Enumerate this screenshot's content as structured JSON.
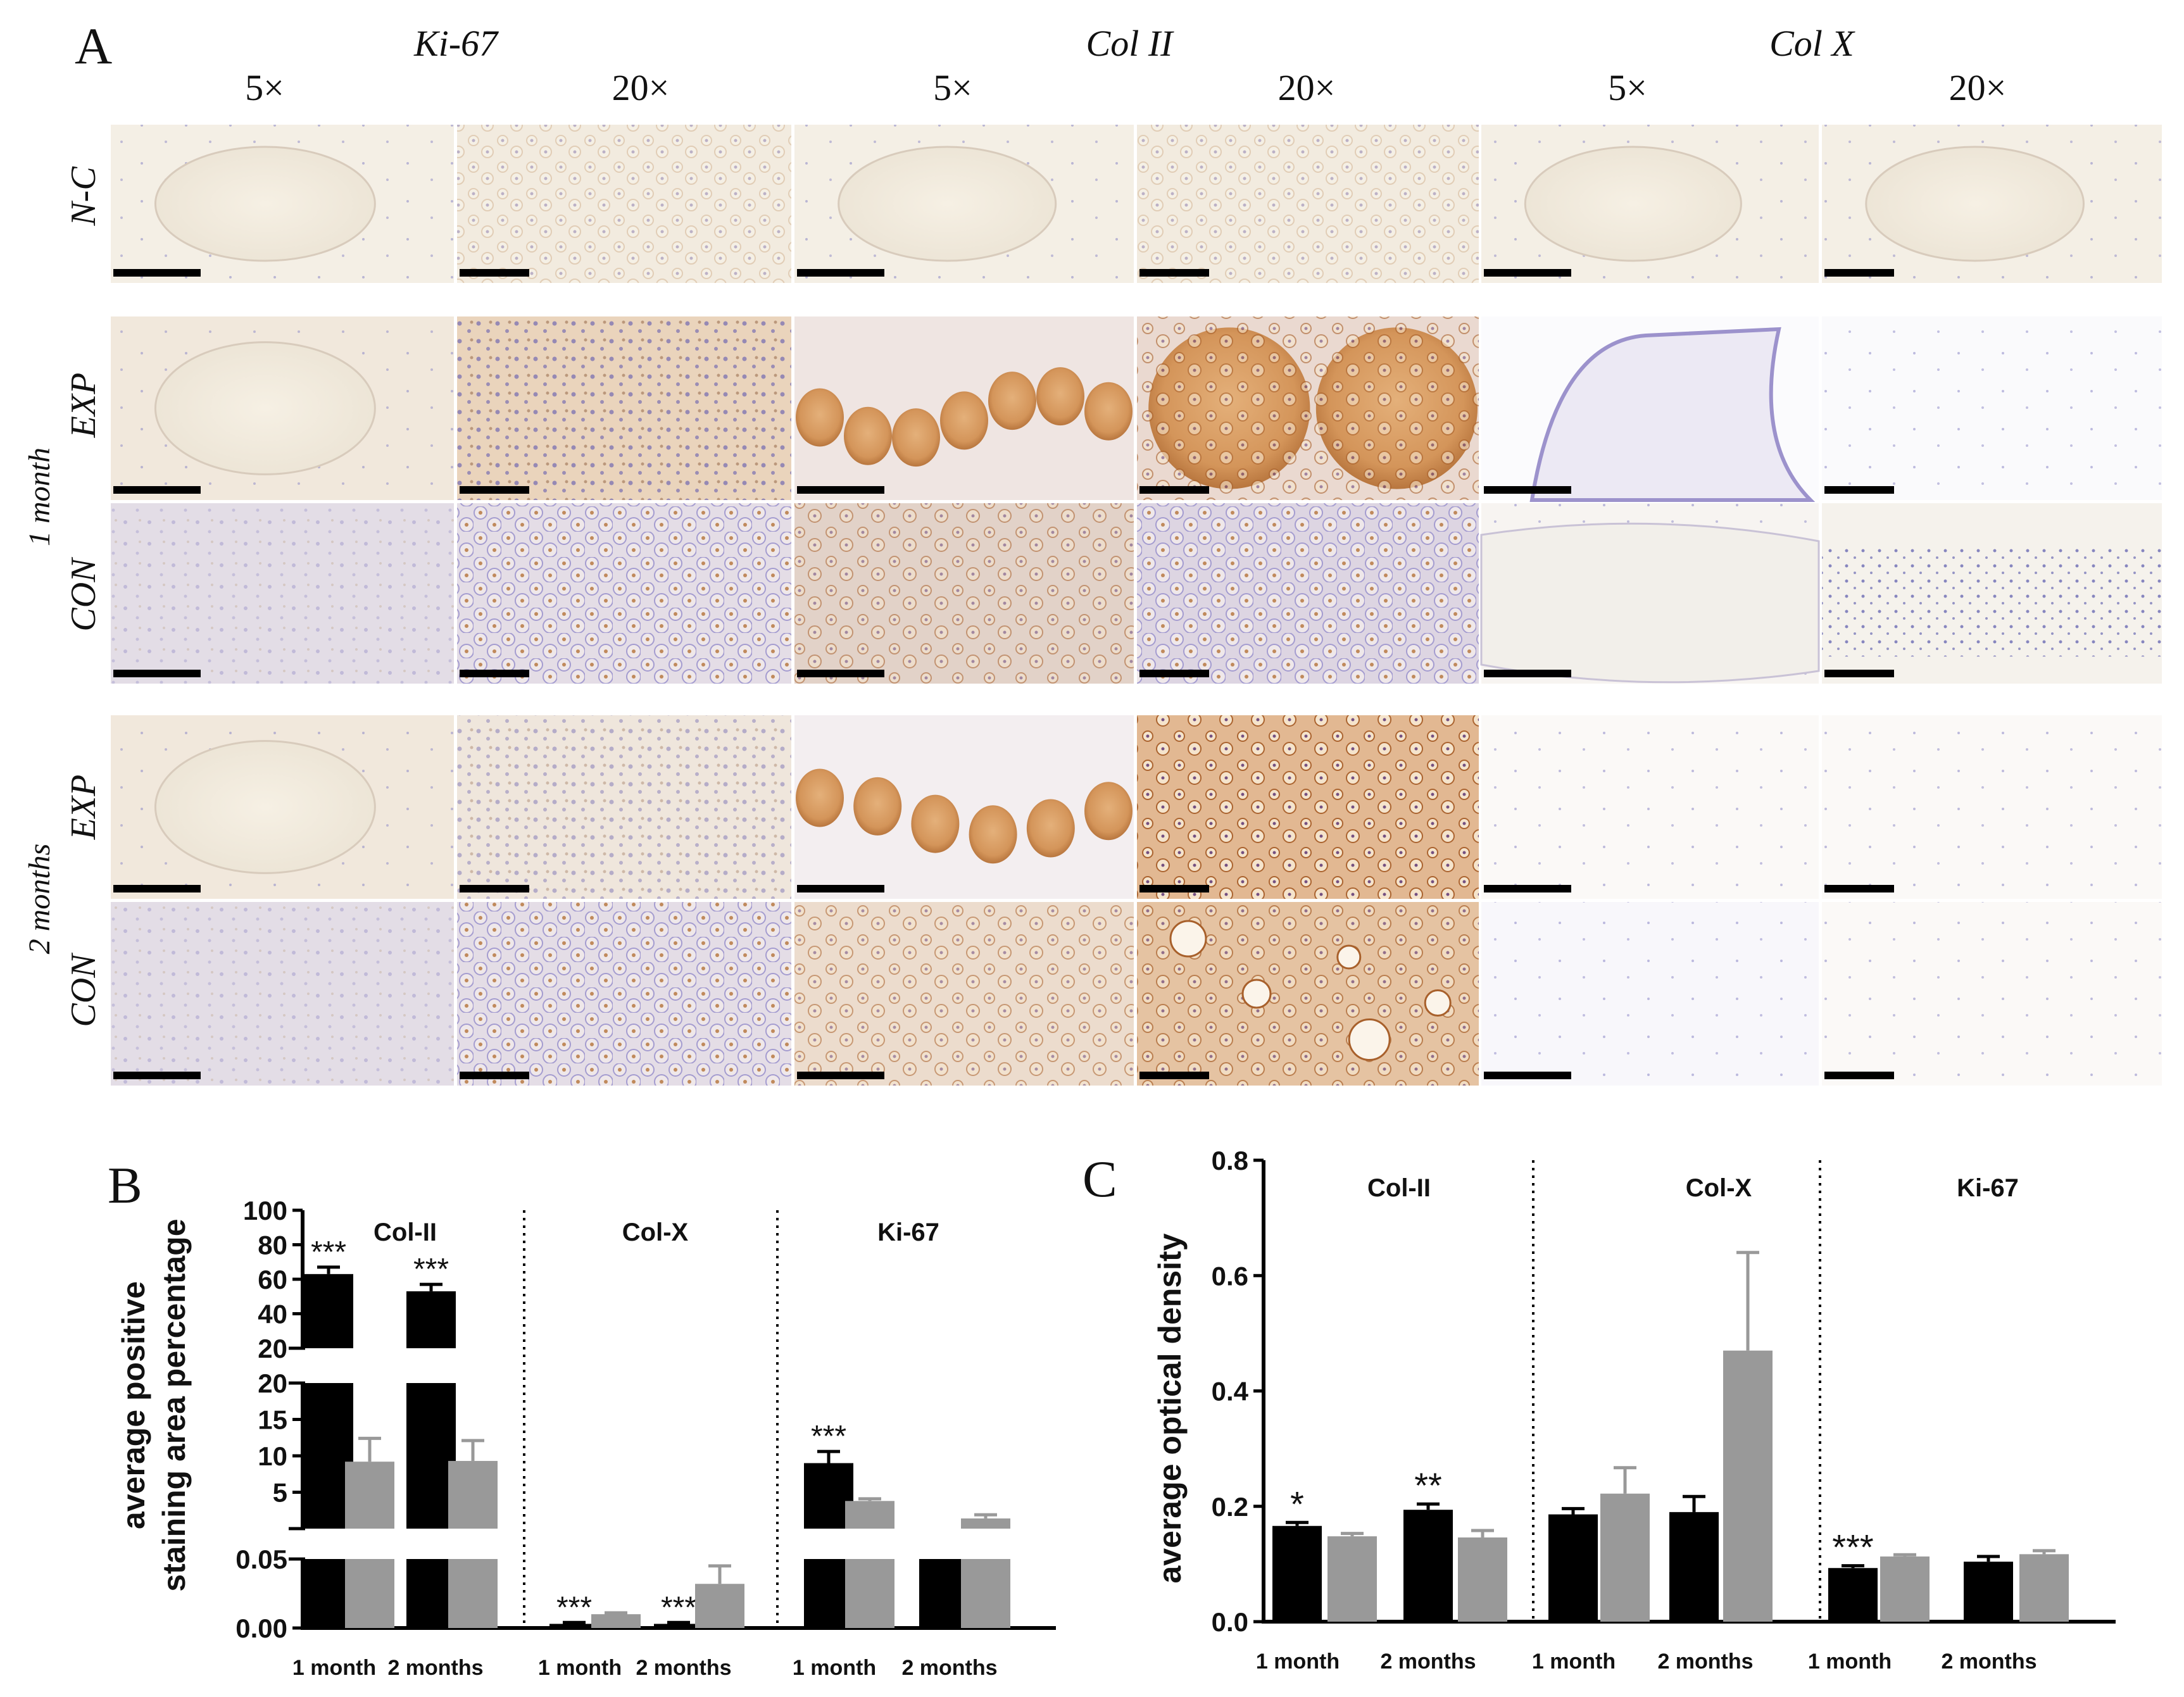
{
  "figure": {
    "panel_a": {
      "label": "A",
      "stains": [
        "Ki-67",
        "Col II",
        "Col X"
      ],
      "magnifications": [
        "5×",
        "20×",
        "5×",
        "20×",
        "5×",
        "20×"
      ],
      "row_labels": [
        "N-C",
        "EXP",
        "CON",
        "EXP",
        "CON"
      ],
      "group_labels": [
        "1 month",
        "2 months"
      ]
    },
    "panel_b": {
      "label": "B",
      "ylabel_line1": "average  positive",
      "ylabel_line2": "staining area  percentage"
    },
    "panel_c": {
      "label": "C",
      "ylabel": "average optical density"
    },
    "colors": {
      "exp_bar": "#000000",
      "con_bar": "#999999",
      "tissue_base": "#f3eddf",
      "brown_stain": "#d49a5c",
      "hematoxylin": "#8a86c6"
    }
  },
  "chart_data": [
    {
      "type": "bar",
      "panel": "B",
      "groups": [
        "Col-II",
        "Col-X",
        "Ki-67"
      ],
      "categories": [
        "1 month",
        "2 months",
        "1 month",
        "2 months",
        "1 month",
        "2 months"
      ],
      "y_axis_segments": [
        {
          "range": [
            0,
            0.05
          ],
          "ticks": [
            "0.00",
            "0.05"
          ]
        },
        {
          "range": [
            0,
            20
          ],
          "ticks": [
            "5",
            "10",
            "15",
            "20"
          ]
        },
        {
          "range": [
            20,
            100
          ],
          "ticks": [
            "20",
            "40",
            "60",
            "80",
            "100"
          ]
        }
      ],
      "series": [
        {
          "values": [
            63,
            53,
            0.003,
            0.003,
            9,
            0.05
          ],
          "errors": [
            4,
            4,
            0.001,
            0.001,
            1.6,
            0
          ],
          "significance": [
            "***",
            "***",
            "***",
            "***",
            "***",
            ""
          ]
        },
        {
          "values": [
            9.2,
            9.3,
            0.01,
            0.032,
            3.8,
            1.4
          ],
          "errors": [
            3.2,
            2.8,
            0.001,
            0.013,
            0.3,
            0.5
          ],
          "significance": [
            "",
            "",
            "",
            "",
            "",
            ""
          ]
        }
      ]
    },
    {
      "type": "bar",
      "panel": "C",
      "groups": [
        "Col-II",
        "Col-X",
        "Ki-67"
      ],
      "categories": [
        "1 month",
        "2 months",
        "1 month",
        "2 months",
        "1 month",
        "2 months"
      ],
      "ylim": [
        0,
        0.8
      ],
      "yticks": [
        "0.0",
        "0.2",
        "0.4",
        "0.6",
        "0.8"
      ],
      "series": [
        {
          "values": [
            0.166,
            0.194,
            0.186,
            0.19,
            0.093,
            0.104
          ],
          "errors": [
            0.006,
            0.01,
            0.01,
            0.027,
            0.004,
            0.009
          ],
          "significance": [
            "*",
            "**",
            "",
            "",
            "***",
            ""
          ]
        },
        {
          "values": [
            0.148,
            0.146,
            0.222,
            0.47,
            0.113,
            0.117
          ],
          "errors": [
            0.005,
            0.012,
            0.045,
            0.17,
            0.003,
            0.006
          ],
          "significance": [
            "",
            "",
            "",
            "",
            "",
            ""
          ]
        }
      ]
    }
  ]
}
